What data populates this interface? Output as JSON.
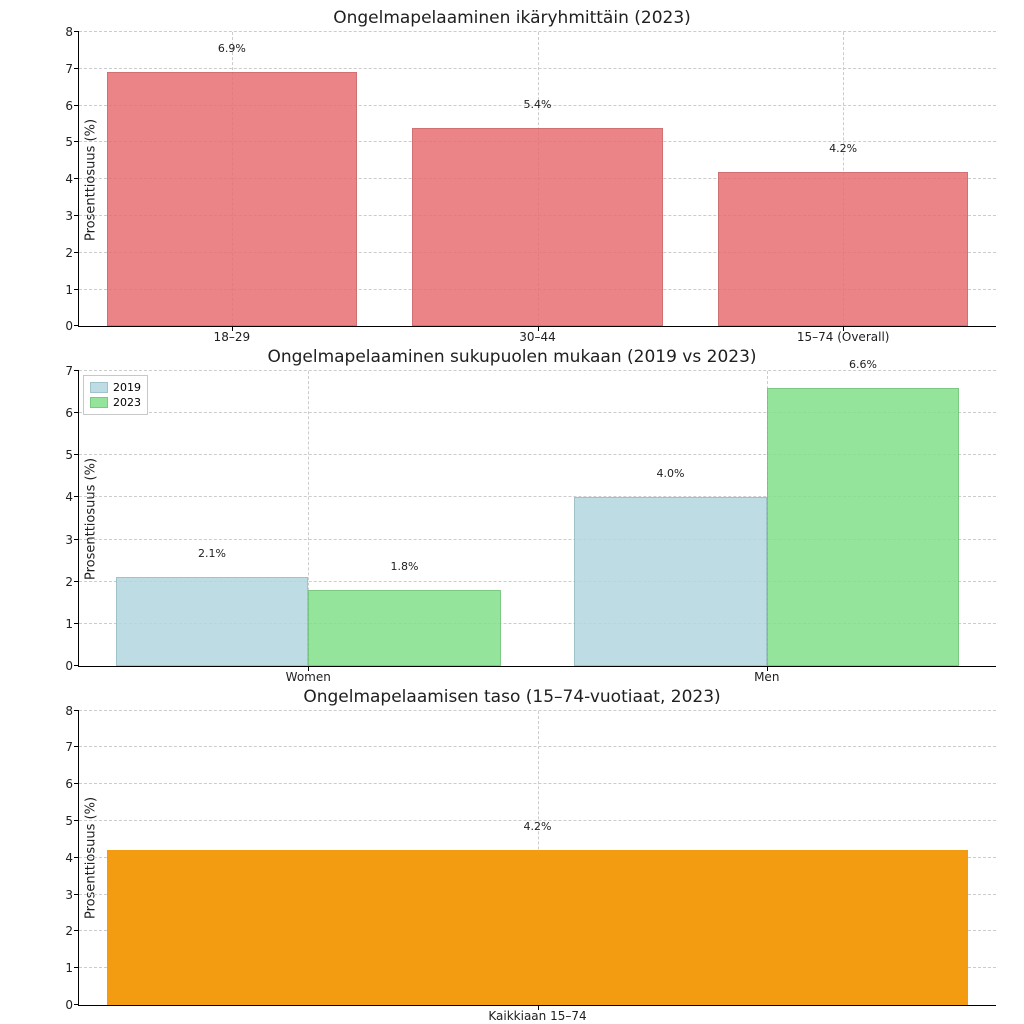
{
  "background_color": "#ffffff",
  "grid_color": "#cccccc",
  "axis_color": "#000000",
  "text_color": "#202020",
  "title_fontsize": 17,
  "tick_fontsize": 12,
  "label_fontsize": 13,
  "value_label_fontsize": 11,
  "panel1": {
    "title": "Ongelmapelaaminen ikäryhmittäin (2023)",
    "type": "bar",
    "ylabel": "Prosenttiosuus (%)",
    "ylim": [
      0,
      8
    ],
    "ytick_step": 1,
    "categories": [
      "18–29",
      "30–44",
      "15–74 (Overall)"
    ],
    "values": [
      6.9,
      5.4,
      4.2
    ],
    "value_labels": [
      "6.9%",
      "5.4%",
      "4.2%"
    ],
    "bar_color": "#e76f71",
    "bar_edge_color": "#c85a5c",
    "bar_alpha": 0.85,
    "bar_width": 0.82,
    "grid": true
  },
  "panel2": {
    "title": "Ongelmapelaaminen sukupuolen mukaan (2019 vs 2023)",
    "type": "grouped_bar",
    "ylabel": "Prosenttiosuus (%)",
    "ylim": [
      0,
      7
    ],
    "ytick_step": 1,
    "categories": [
      "Women",
      "Men"
    ],
    "series": [
      {
        "name": "2019",
        "color": "#b3d7e0",
        "edge": "#8fb8c2",
        "values": [
          2.1,
          4.0
        ],
        "labels": [
          "2.1%",
          "4.0%"
        ]
      },
      {
        "name": "2023",
        "color": "#83e08a",
        "edge": "#66c06d",
        "values": [
          1.8,
          6.6
        ],
        "labels": [
          "1.8%",
          "6.6%"
        ]
      }
    ],
    "bar_width": 0.42,
    "grid": true,
    "legend_position": "upper-left"
  },
  "panel3": {
    "title": "Ongelmapelaamisen taso (15–74-vuotiaat, 2023)",
    "type": "bar",
    "ylabel": "Prosenttiosuus (%)",
    "ylim": [
      0,
      8
    ],
    "ytick_step": 1,
    "categories": [
      "Kaikkiaan 15–74"
    ],
    "values": [
      4.2
    ],
    "value_labels": [
      "4.2%"
    ],
    "bar_color": "#f39c12",
    "bar_edge_color": "#f39c12",
    "bar_width": 0.94,
    "grid": true
  }
}
